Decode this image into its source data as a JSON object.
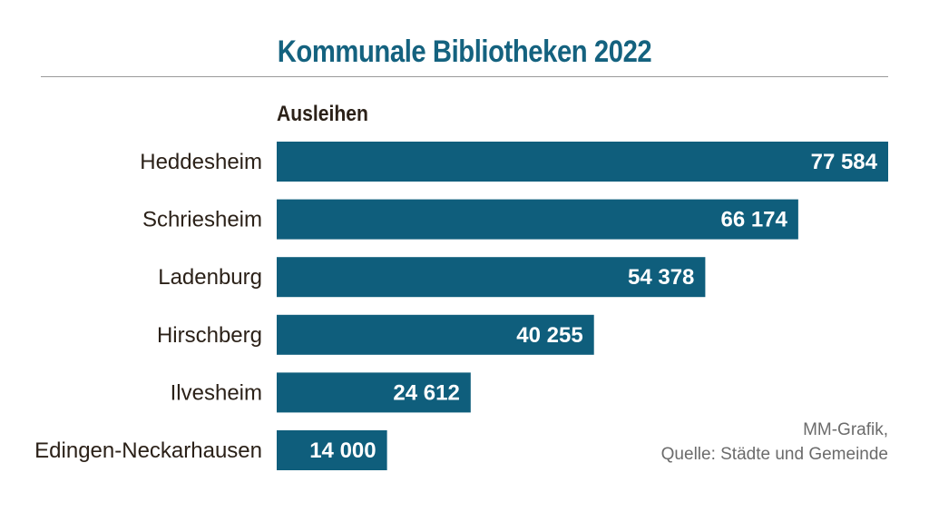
{
  "chart_data": {
    "type": "bar",
    "orientation": "horizontal",
    "title": "Kommunale Bibliotheken 2022",
    "subtitle": "Ausleihen",
    "categories": [
      "Heddesheim",
      "Schriesheim",
      "Ladenburg",
      "Hirschberg",
      "Ilvesheim",
      "Edingen-Neckarhausen"
    ],
    "values": [
      77584,
      66174,
      54378,
      40255,
      24612,
      14000
    ],
    "value_labels": [
      "77 584",
      "66 174",
      "54 378",
      "40 255",
      "24 612",
      "14 000"
    ],
    "xlim": [
      0,
      77584
    ],
    "grid": false,
    "bar_color": "#0f5e7c",
    "title_color": "#14627f"
  },
  "source": {
    "line1": "MM-Grafik,",
    "line2": "Quelle: Städte und Gemeinde"
  }
}
